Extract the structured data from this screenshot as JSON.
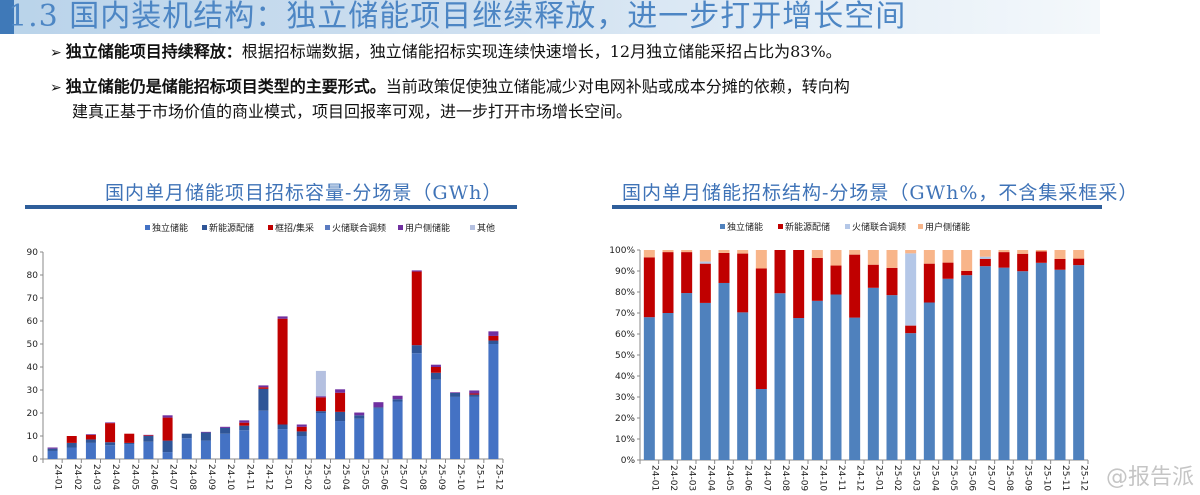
{
  "header": {
    "title": "1.3 国内装机结构：独立储能项目继续释放，进一步打开增长空间"
  },
  "bullets": [
    {
      "bold": "独立储能项目持续释放：",
      "text": "根据招标端数据，独立储能招标实现连续快速增长，12月独立储能采招占比为83%。",
      "cont": ""
    },
    {
      "bold": "独立储能仍是储能招标项目类型的主要形式。",
      "text": "当前政策促使独立储能减少对电网补贴或成本分摊的依赖，转向构",
      "cont": "建真正基于市场价值的商业模式，项目回报率可观，进一步打开市场增长空间。"
    }
  ],
  "watermark": "@报告派",
  "chart_data": [
    {
      "type": "bar",
      "stacked": true,
      "title": "国内单月储能项目招标容量-分场景（GWh）",
      "xlabel": "",
      "ylabel": "",
      "ylim": [
        0,
        90
      ],
      "yticks": [
        "0",
        "10",
        "20",
        "30",
        "40",
        "50",
        "60",
        "70",
        "80",
        "90"
      ],
      "legend_position": "top",
      "categories": [
        "24-01",
        "24-02",
        "24-03",
        "24-04",
        "24-05",
        "24-06",
        "24-07",
        "24-08",
        "24-09",
        "24-10",
        "24-11",
        "24-12",
        "25-01",
        "25-02",
        "25-03",
        "25-04",
        "25-05",
        "25-06",
        "25-07",
        "25-08",
        "25-09",
        "25-10",
        "25-11",
        "25-12"
      ],
      "series": [
        {
          "name": "独立储能",
          "color": "#4472C4",
          "values": [
            3.5,
            5,
            7,
            6,
            6.5,
            7.5,
            3,
            9,
            8,
            11,
            12.5,
            21,
            13,
            10,
            20,
            16.5,
            17.5,
            22,
            25,
            46,
            34.5,
            27,
            27,
            50
          ]
        },
        {
          "name": "新能源配储",
          "color": "#2F5597",
          "values": [
            1,
            2,
            1.5,
            1.3,
            0.5,
            2.5,
            5,
            2,
            3.5,
            2.5,
            2,
            9.5,
            2,
            2,
            0.8,
            4,
            1.5,
            0.5,
            1,
            3.5,
            3,
            1.7,
            1,
            1.5
          ]
        },
        {
          "name": "框招/集采",
          "color": "#C00000",
          "values": [
            0,
            3,
            2,
            8.3,
            4,
            0.3,
            10,
            0,
            0,
            0,
            1.3,
            0.7,
            46,
            2,
            6,
            8.3,
            0,
            0,
            0,
            32,
            2.5,
            0,
            0.5,
            2
          ]
        },
        {
          "name": "火储联合调频",
          "color": "#5B7BC0",
          "values": [
            0,
            0,
            0,
            0,
            0,
            0,
            0,
            0,
            0,
            0,
            0,
            0,
            0,
            0,
            0,
            0,
            0,
            0,
            0,
            0,
            0,
            0,
            0,
            0
          ]
        },
        {
          "name": "用户侧储能",
          "color": "#7030A0",
          "values": [
            0.5,
            0,
            0.3,
            0.3,
            0,
            0.2,
            1,
            0,
            0.3,
            0.5,
            1,
            0.8,
            1,
            1,
            0.5,
            1.5,
            1.2,
            2.2,
            1.5,
            0.5,
            1,
            0.3,
            1.3,
            2
          ]
        },
        {
          "name": "其他",
          "color": "#B4C0E0",
          "values": [
            0,
            0,
            0,
            0,
            0,
            0,
            0,
            0,
            0,
            0,
            0,
            0,
            0,
            0,
            11,
            0,
            0,
            0,
            0,
            0,
            0,
            0,
            0,
            0
          ]
        }
      ]
    },
    {
      "type": "bar",
      "stacked": true,
      "title": "国内单月储能招标结构-分场景（GWh%，不含集采框采）",
      "xlabel": "",
      "ylabel": "",
      "ylim": [
        0,
        100
      ],
      "yticks": [
        "0%",
        "10%",
        "20%",
        "30%",
        "40%",
        "50%",
        "60%",
        "70%",
        "80%",
        "90%",
        "100%"
      ],
      "legend_position": "top",
      "categories": [
        "24-01",
        "24-02",
        "24-03",
        "24-04",
        "24-05",
        "24-06",
        "24-07",
        "24-08",
        "24-09",
        "24-10",
        "24-11",
        "24-12",
        "25-01",
        "25-02",
        "25-03",
        "25-04",
        "25-05",
        "25-06",
        "25-07",
        "25-08",
        "25-09",
        "25-10",
        "25-11",
        "25-12"
      ],
      "series": [
        {
          "name": "独立储能",
          "color": "#4F81BD",
          "values": [
            68,
            70,
            79.5,
            74.8,
            84.3,
            70.3,
            33.8,
            79.4,
            67.6,
            75.8,
            78.8,
            67.8,
            82,
            78.5,
            60.4,
            75,
            86.3,
            88,
            92.3,
            91.6,
            89.9,
            93.9,
            90.6,
            92.8
          ]
        },
        {
          "name": "新能源配储",
          "color": "#C00000",
          "values": [
            28.5,
            29,
            19.5,
            18.7,
            14.3,
            28,
            57.4,
            20.6,
            32.4,
            20.4,
            13.8,
            30,
            11,
            13,
            3.6,
            18.5,
            7.7,
            2,
            3.5,
            7.4,
            8.3,
            5.4,
            5.2,
            3.1
          ]
        },
        {
          "name": "火储联合调频",
          "color": "#B4C7E7",
          "values": [
            0,
            0,
            0,
            1,
            0,
            0,
            0,
            0,
            0,
            0,
            0,
            0,
            0,
            0,
            34.4,
            0,
            0,
            0,
            1,
            0,
            0,
            0,
            0,
            0
          ]
        },
        {
          "name": "用户侧储能",
          "color": "#F8B58A",
          "values": [
            3.5,
            1,
            1,
            5.5,
            1.4,
            1.7,
            8.8,
            0,
            0,
            3.8,
            7.4,
            2.2,
            7,
            8.5,
            1.6,
            6.5,
            6,
            10,
            3.2,
            1,
            1.8,
            0.7,
            4.2,
            4.1
          ]
        }
      ]
    }
  ]
}
